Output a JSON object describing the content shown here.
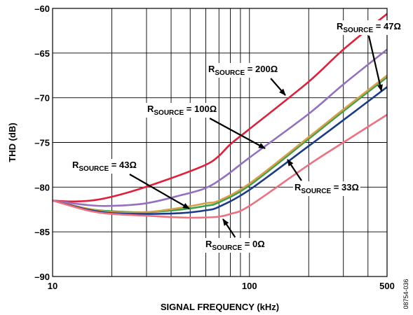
{
  "figure_id": "08754-036",
  "chart_data": {
    "type": "line",
    "title": "",
    "xlabel": "SIGNAL FREQUENCY (kHz)",
    "ylabel": "THD (dB)",
    "xscale": "log",
    "xlim": [
      10,
      500
    ],
    "ylim": [
      -90,
      -60
    ],
    "xticks": [
      10,
      100,
      500
    ],
    "xtick_labels": [
      "10",
      "100",
      "500"
    ],
    "yticks": [
      -60,
      -65,
      -70,
      -75,
      -80,
      -85,
      -90
    ],
    "ytick_labels": [
      "–60",
      "–65",
      "–70",
      "–75",
      "–80",
      "–85",
      "–90"
    ],
    "grid": true,
    "series": [
      {
        "name": "R_SOURCE = 47Ω",
        "color": "#e0203a",
        "points": [
          [
            10,
            -81.5
          ],
          [
            13,
            -81.6
          ],
          [
            17,
            -81.4
          ],
          [
            25,
            -80.5
          ],
          [
            40,
            -79
          ],
          [
            60,
            -77.5
          ],
          [
            70,
            -76.5
          ],
          [
            80,
            -75.2
          ],
          [
            100,
            -73.5
          ],
          [
            200,
            -68.2
          ],
          [
            300,
            -64.6
          ],
          [
            500,
            -60.6
          ]
        ]
      },
      {
        "name": "R_SOURCE = 200Ω",
        "color": "#9370c0",
        "points": [
          [
            10,
            -81.5
          ],
          [
            15,
            -82
          ],
          [
            20,
            -82.1
          ],
          [
            30,
            -81.8
          ],
          [
            45,
            -80.9
          ],
          [
            60,
            -80.1
          ],
          [
            75,
            -78.8
          ],
          [
            100,
            -76.7
          ],
          [
            200,
            -71.8
          ],
          [
            300,
            -68.5
          ],
          [
            500,
            -64.6
          ]
        ]
      },
      {
        "name": "R_SOURCE = 100Ω",
        "color": "#3aa04a",
        "points": [
          [
            10,
            -81.5
          ],
          [
            15,
            -82.4
          ],
          [
            20,
            -82.7
          ],
          [
            30,
            -82.8
          ],
          [
            45,
            -82.5
          ],
          [
            60,
            -82.1
          ],
          [
            70,
            -81.7
          ],
          [
            100,
            -79.8
          ],
          [
            200,
            -74.6
          ],
          [
            300,
            -71.5
          ],
          [
            500,
            -67.7
          ]
        ]
      },
      {
        "name": "R_SOURCE = 43Ω",
        "color": "#d6a048",
        "points": [
          [
            10,
            -81.5
          ],
          [
            15,
            -82.4
          ],
          [
            20,
            -82.8
          ],
          [
            30,
            -82.8
          ],
          [
            45,
            -82.3
          ],
          [
            60,
            -81.8
          ],
          [
            70,
            -81.5
          ],
          [
            100,
            -79.6
          ],
          [
            200,
            -74.4
          ],
          [
            300,
            -71.3
          ],
          [
            500,
            -67.5
          ]
        ]
      },
      {
        "name": "R_SOURCE = 33Ω",
        "color": "#1a3a8a",
        "points": [
          [
            10,
            -81.5
          ],
          [
            15,
            -82.5
          ],
          [
            20,
            -82.9
          ],
          [
            30,
            -83
          ],
          [
            45,
            -82.9
          ],
          [
            60,
            -82.6
          ],
          [
            70,
            -82.2
          ],
          [
            100,
            -80.3
          ],
          [
            200,
            -75.4
          ],
          [
            300,
            -72.5
          ],
          [
            500,
            -68.8
          ]
        ]
      },
      {
        "name": "R_SOURCE = 0Ω",
        "color": "#f07080",
        "points": [
          [
            10,
            -81.5
          ],
          [
            15,
            -82.6
          ],
          [
            20,
            -83
          ],
          [
            30,
            -83.2
          ],
          [
            45,
            -83.4
          ],
          [
            60,
            -83.4
          ],
          [
            70,
            -83.3
          ],
          [
            80,
            -83
          ],
          [
            100,
            -82.1
          ],
          [
            200,
            -77.5
          ],
          [
            300,
            -75
          ],
          [
            500,
            -71.9
          ]
        ]
      }
    ],
    "annotations": [
      {
        "text": "R",
        "sub": "SOURCE",
        "rest": " = 47Ω",
        "x": 480,
        "y": 42,
        "arrow_to": [
          544,
          130
        ]
      },
      {
        "text": "R",
        "sub": "SOURCE",
        "rest": " = 200Ω",
        "x": 297,
        "y": 103,
        "arrow_to": [
          407,
          136
        ]
      },
      {
        "text": "R",
        "sub": "SOURCE",
        "rest": " = 100Ω",
        "x": 210,
        "y": 160,
        "arrow_to": [
          378,
          212
        ]
      },
      {
        "text": "R",
        "sub": "SOURCE",
        "rest": " = 43Ω",
        "x": 103,
        "y": 240,
        "arrow_to": [
          270,
          298
        ]
      },
      {
        "text": "R",
        "sub": "SOURCE",
        "rest": " = 33Ω",
        "x": 420,
        "y": 272,
        "arrow_to": [
          410,
          228
        ]
      },
      {
        "text": "R",
        "sub": "SOURCE",
        "rest": " = 0Ω",
        "x": 293,
        "y": 353,
        "arrow_to": [
          318,
          313
        ]
      }
    ]
  }
}
